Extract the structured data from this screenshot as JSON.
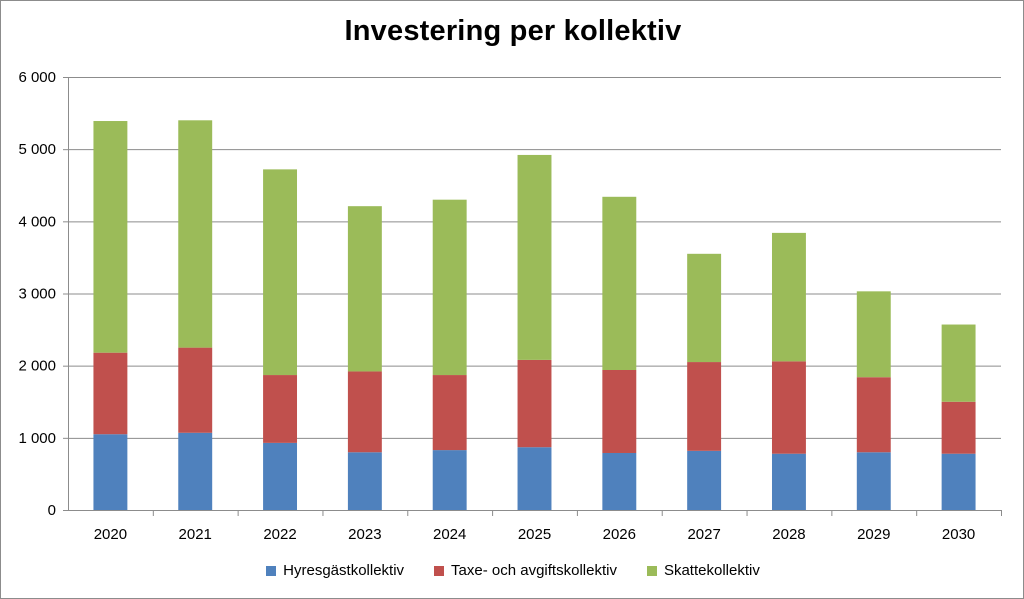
{
  "chart_data": {
    "type": "bar",
    "stacked": true,
    "title": "Investering per kollektiv",
    "xlabel": "",
    "ylabel": "",
    "ylim": [
      0,
      6000
    ],
    "yticks": [
      0,
      1000,
      2000,
      3000,
      4000,
      5000,
      6000
    ],
    "ytick_labels": [
      "0",
      "1 000",
      "2 000",
      "3 000",
      "4 000",
      "5 000",
      "6 000"
    ],
    "grid": true,
    "legend_position": "bottom",
    "categories": [
      "2020",
      "2021",
      "2022",
      "2023",
      "2024",
      "2025",
      "2026",
      "2027",
      "2028",
      "2029",
      "2030"
    ],
    "series": [
      {
        "name": "Hyresgästkollektiv",
        "color": "#4f81bd",
        "values": [
          1050,
          1070,
          930,
          800,
          830,
          870,
          790,
          820,
          780,
          800,
          780
        ]
      },
      {
        "name": "Taxe- och avgiftskollektiv",
        "color": "#c0504d",
        "values": [
          1130,
          1180,
          940,
          1120,
          1040,
          1210,
          1150,
          1230,
          1280,
          1040,
          720
        ]
      },
      {
        "name": "Skattekollektiv",
        "color": "#9bbb59",
        "values": [
          3210,
          3150,
          2850,
          2290,
          2430,
          2840,
          2400,
          1500,
          1780,
          1190,
          1070
        ]
      }
    ]
  }
}
